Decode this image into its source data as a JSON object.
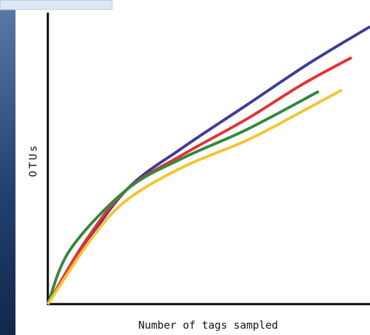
{
  "chart_data": {
    "type": "line",
    "xlabel": "Number of tags sampled",
    "ylabel": "OTUs",
    "xlim": [
      0,
      100
    ],
    "ylim": [
      0,
      100
    ],
    "series": [
      {
        "color": "#3b3c98",
        "x": [
          0,
          9.2,
          24.5,
          41.9,
          61.6,
          81.2,
          100
        ],
        "values": [
          0,
          16.4,
          39.3,
          53.7,
          68.2,
          82.7,
          95.2
        ]
      },
      {
        "color": "#e63232",
        "x": [
          0,
          11.4,
          24.5,
          41.9,
          61.6,
          79.0,
          94.3
        ],
        "values": [
          0,
          21.2,
          39.3,
          51.3,
          63.4,
          75.4,
          84.6
        ]
      },
      {
        "color": "#2e8b3c",
        "x": [
          0,
          7.0,
          24.5,
          41.9,
          61.6,
          84.1
        ],
        "values": [
          0,
          18.8,
          39.3,
          50.1,
          59.8,
          73.0
        ]
      },
      {
        "color": "#f6c42e",
        "x": [
          0,
          13.5,
          24.5,
          41.9,
          61.6,
          76.4,
          91.3
        ],
        "values": [
          0,
          22.4,
          35.7,
          47.0,
          56.1,
          64.6,
          73.5
        ]
      }
    ]
  }
}
